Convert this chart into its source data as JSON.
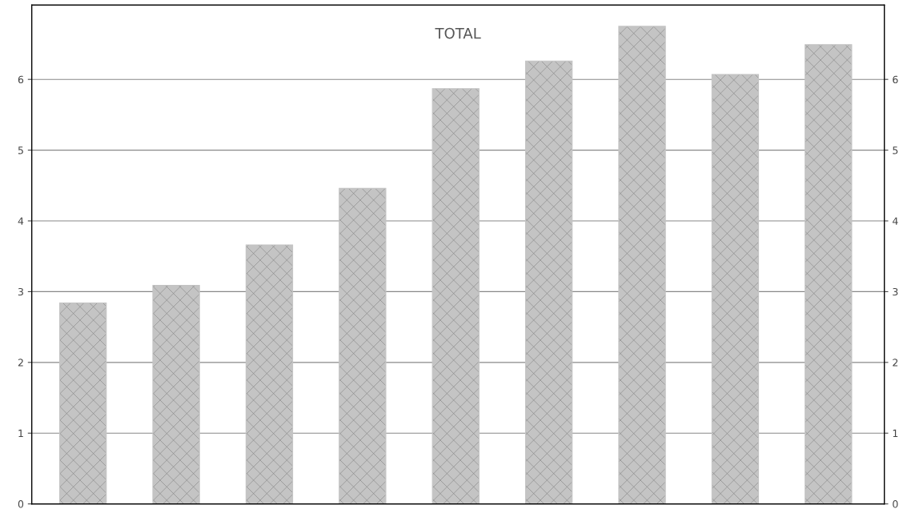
{
  "chart_data": {
    "type": "bar",
    "title": "TOTAL",
    "categories": [
      null,
      null,
      null,
      null,
      null,
      null,
      null,
      null,
      null
    ],
    "values": [
      2.84,
      3.09,
      3.66,
      4.46,
      5.87,
      6.26,
      6.75,
      6.07,
      6.49
    ],
    "color": "#c4c4c4",
    "ylim": [
      0,
      7.05
    ],
    "yticks": [
      0,
      1,
      2,
      3,
      4,
      5,
      6
    ],
    "y2lim": [
      0,
      7.05
    ],
    "y2ticks": [
      0,
      1,
      2,
      3,
      4,
      5,
      6
    ],
    "grid": "y",
    "tick_labels": "y"
  }
}
